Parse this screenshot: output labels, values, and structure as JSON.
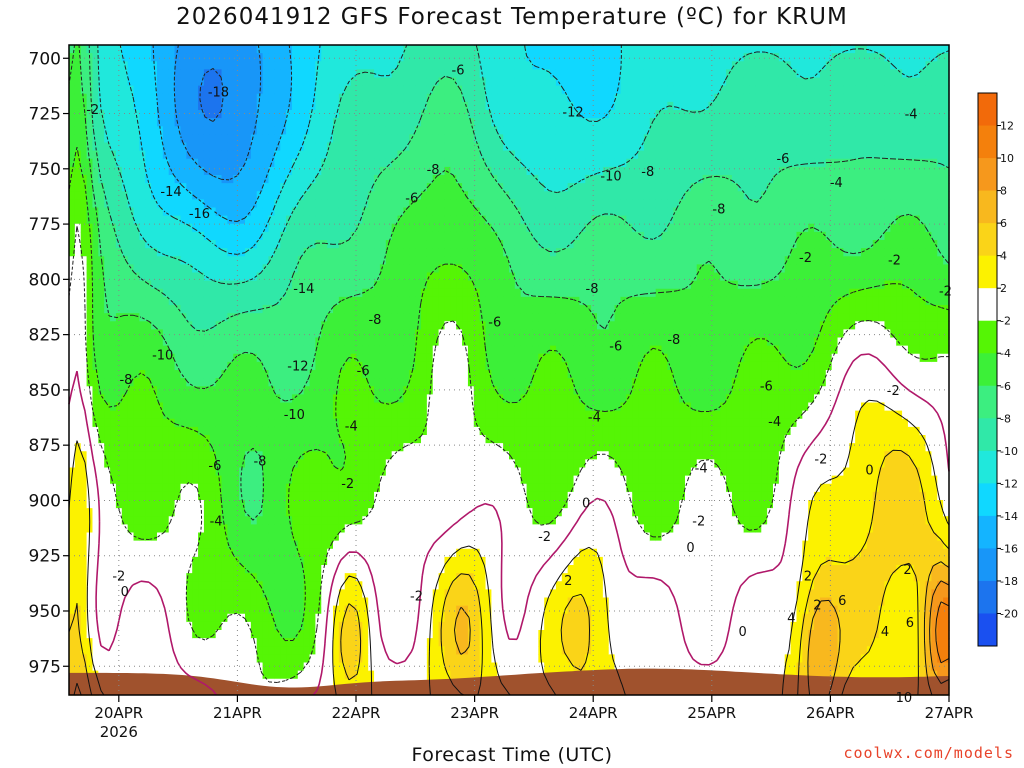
{
  "title": "2026041912 GFS Forecast Temperature (ºC) for KRUM",
  "credit": "coolwx.com/models",
  "chart_data": {
    "type": "heatmap",
    "title": "2026041912 GFS Forecast Temperature (ºC) for KRUM",
    "xlabel": "Forecast Time (UTC)",
    "ylabel": "",
    "x_ticks": [
      "20APR",
      "21APR",
      "22APR",
      "23APR",
      "24APR",
      "25APR",
      "26APR",
      "27APR"
    ],
    "x_subtick": "2026",
    "y_ticks": [
      700,
      725,
      750,
      775,
      800,
      825,
      850,
      875,
      900,
      925,
      950,
      975
    ],
    "y_units": "hPa",
    "xlim": [
      -0.42,
      7.0
    ],
    "ylim": [
      988,
      694
    ],
    "grid": true,
    "colorbar": {
      "levels": [
        12,
        10,
        8,
        6,
        4,
        2,
        -2,
        -4,
        -6,
        -8,
        -10,
        -12,
        -14,
        -16,
        -18,
        -20
      ],
      "colors": [
        "#f26a0a",
        "#f4800c",
        "#f6981c",
        "#f8b81e",
        "#fad418",
        "#fcf200",
        "#ffffff",
        "#55f505",
        "#3cf038",
        "#3cee80",
        "#30e8a8",
        "#20e8dc",
        "#10d8ff",
        "#14b4ff",
        "#1896f8",
        "#1c74ee",
        "#1a50f0"
      ]
    },
    "contour_labels": [
      {
        "t": -0.22,
        "p": 723,
        "v": "-2"
      },
      {
        "t": 0.05,
        "p": 941,
        "v": "0"
      },
      {
        "t": 0.0,
        "p": 934,
        "v": "-2"
      },
      {
        "t": 0.84,
        "p": 715,
        "v": "-18"
      },
      {
        "t": 0.44,
        "p": 760,
        "v": "-14"
      },
      {
        "t": 0.68,
        "p": 770,
        "v": "-16"
      },
      {
        "t": 1.56,
        "p": 804,
        "v": "-14"
      },
      {
        "t": 0.37,
        "p": 834,
        "v": "-10"
      },
      {
        "t": 0.06,
        "p": 845,
        "v": "-8"
      },
      {
        "t": 1.51,
        "p": 839,
        "v": "-12"
      },
      {
        "t": 1.48,
        "p": 861,
        "v": "-10"
      },
      {
        "t": 0.81,
        "p": 884,
        "v": "-6"
      },
      {
        "t": 1.19,
        "p": 882,
        "v": "-8"
      },
      {
        "t": 0.82,
        "p": 909,
        "v": "-4"
      },
      {
        "t": 2.86,
        "p": 705,
        "v": "-6"
      },
      {
        "t": 2.65,
        "p": 750,
        "v": "-8"
      },
      {
        "t": 2.47,
        "p": 763,
        "v": "-6"
      },
      {
        "t": 2.16,
        "p": 818,
        "v": "-8"
      },
      {
        "t": 2.06,
        "p": 841,
        "v": "-6"
      },
      {
        "t": 1.96,
        "p": 866,
        "v": "-4"
      },
      {
        "t": 1.93,
        "p": 892,
        "v": "-2"
      },
      {
        "t": 2.51,
        "p": 943,
        "v": "-2"
      },
      {
        "t": 3.83,
        "p": 724,
        "v": "-12"
      },
      {
        "t": 4.15,
        "p": 753,
        "v": "-10"
      },
      {
        "t": 4.46,
        "p": 751,
        "v": "-8"
      },
      {
        "t": 5.06,
        "p": 768,
        "v": "-8"
      },
      {
        "t": 3.99,
        "p": 804,
        "v": "-8"
      },
      {
        "t": 3.17,
        "p": 819,
        "v": "-6"
      },
      {
        "t": 4.19,
        "p": 830,
        "v": "-6"
      },
      {
        "t": 4.68,
        "p": 827,
        "v": "-8"
      },
      {
        "t": 4.01,
        "p": 862,
        "v": "-4"
      },
      {
        "t": 3.94,
        "p": 901,
        "v": "0"
      },
      {
        "t": 3.59,
        "p": 916,
        "v": "-2"
      },
      {
        "t": 3.79,
        "p": 936,
        "v": "2"
      },
      {
        "t": 5.46,
        "p": 848,
        "v": "-6"
      },
      {
        "t": 5.53,
        "p": 864,
        "v": "-4"
      },
      {
        "t": 4.91,
        "p": 885,
        "v": "-4"
      },
      {
        "t": 4.89,
        "p": 909,
        "v": "-2"
      },
      {
        "t": 4.82,
        "p": 921,
        "v": "0"
      },
      {
        "t": 5.26,
        "p": 959,
        "v": "0"
      },
      {
        "t": 5.6,
        "p": 745,
        "v": "-6"
      },
      {
        "t": 6.05,
        "p": 756,
        "v": "-4"
      },
      {
        "t": 5.79,
        "p": 790,
        "v": "-2"
      },
      {
        "t": 5.92,
        "p": 881,
        "v": "-2"
      },
      {
        "t": 5.81,
        "p": 934,
        "v": "2"
      },
      {
        "t": 5.89,
        "p": 947,
        "v": "2"
      },
      {
        "t": 5.67,
        "p": 953,
        "v": "4"
      },
      {
        "t": 6.1,
        "p": 945,
        "v": "6"
      },
      {
        "t": 6.68,
        "p": 725,
        "v": "-4"
      },
      {
        "t": 6.54,
        "p": 791,
        "v": "-2"
      },
      {
        "t": 6.97,
        "p": 805,
        "v": "-2"
      },
      {
        "t": 6.53,
        "p": 850,
        "v": "-2"
      },
      {
        "t": 6.33,
        "p": 886,
        "v": "0"
      },
      {
        "t": 6.65,
        "p": 931,
        "v": "2"
      },
      {
        "t": 6.67,
        "p": 955,
        "v": "6"
      },
      {
        "t": 6.46,
        "p": 959,
        "v": "4"
      },
      {
        "t": 6.62,
        "p": 989,
        "v": "10"
      }
    ]
  }
}
